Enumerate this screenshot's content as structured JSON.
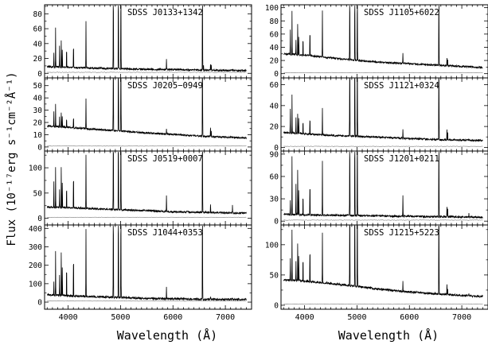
{
  "figure": {
    "ylabel": "Flux (10⁻¹⁷erg s⁻¹cm⁻²Å⁻¹)",
    "xlabel": "Wavelength (Å)"
  },
  "chart_data": [
    {
      "type": "line",
      "title": "SDSS J0133+1342",
      "column": "left",
      "row": 0,
      "ylim": [
        -4,
        90
      ],
      "yticks": [
        0,
        20,
        40,
        60,
        80
      ],
      "xlim": [
        3550,
        7500
      ],
      "xticks": [
        4000,
        5000,
        6000,
        7000
      ],
      "xticklabels": [],
      "continuum": {
        "x": [
          3600,
          4000,
          4500,
          5000,
          5500,
          6000,
          6500,
          7000,
          7500
        ],
        "y": [
          9.0,
          8.0,
          7.0,
          6.2,
          5.5,
          5.0,
          4.5,
          4.0,
          3.6
        ]
      },
      "lines": [
        {
          "x": 3727,
          "y": 30
        },
        {
          "x": 3760,
          "y": 62
        },
        {
          "x": 3835,
          "y": 40
        },
        {
          "x": 3869,
          "y": 48
        },
        {
          "x": 3889,
          "y": 35
        },
        {
          "x": 3970,
          "y": 38
        },
        {
          "x": 4102,
          "y": 46
        },
        {
          "x": 4340,
          "y": 70
        },
        {
          "x": 4861,
          "y": 200
        },
        {
          "x": 4959,
          "y": 200
        },
        {
          "x": 5007,
          "y": 200
        },
        {
          "x": 5876,
          "y": 20
        },
        {
          "x": 6563,
          "y": 200
        },
        {
          "x": 6584,
          "y": 10
        },
        {
          "x": 6717,
          "y": 14
        },
        {
          "x": 6731,
          "y": 11
        },
        {
          "x": 7136,
          "y": 6
        }
      ]
    },
    {
      "type": "line",
      "title": "SDSS J0205−0949",
      "column": "left",
      "row": 1,
      "ylim": [
        -2,
        55
      ],
      "yticks": [
        0,
        10,
        20,
        30,
        40,
        50
      ],
      "xlim": [
        3550,
        7500
      ],
      "xticks": [
        4000,
        5000,
        6000,
        7000
      ],
      "xticklabels": [],
      "continuum": {
        "x": [
          3600,
          4000,
          4500,
          5000,
          5500,
          6000,
          6500,
          7000,
          7500
        ],
        "y": [
          17,
          16,
          14.5,
          13,
          11.5,
          10.2,
          9.0,
          8.0,
          7.2
        ]
      },
      "lines": [
        {
          "x": 3727,
          "y": 30
        },
        {
          "x": 3760,
          "y": 35
        },
        {
          "x": 3835,
          "y": 26
        },
        {
          "x": 3869,
          "y": 30
        },
        {
          "x": 3889,
          "y": 26
        },
        {
          "x": 3970,
          "y": 25
        },
        {
          "x": 4102,
          "y": 27
        },
        {
          "x": 4340,
          "y": 40
        },
        {
          "x": 4861,
          "y": 200
        },
        {
          "x": 4959,
          "y": 200
        },
        {
          "x": 5007,
          "y": 200
        },
        {
          "x": 5876,
          "y": 15
        },
        {
          "x": 6563,
          "y": 200
        },
        {
          "x": 6717,
          "y": 17
        },
        {
          "x": 6731,
          "y": 13
        }
      ]
    },
    {
      "type": "line",
      "title": "SDSS J0519+0007",
      "column": "left",
      "row": 2,
      "ylim": [
        -10,
        130
      ],
      "yticks": [
        0,
        50,
        100
      ],
      "xlim": [
        3550,
        7500
      ],
      "xticks": [
        4000,
        5000,
        6000,
        7000
      ],
      "xticklabels": [],
      "continuum": {
        "x": [
          3600,
          4000,
          4500,
          5000,
          5500,
          6000,
          6500,
          7000,
          7500
        ],
        "y": [
          22,
          21,
          19,
          17,
          15,
          13,
          12,
          11,
          10
        ]
      },
      "lines": [
        {
          "x": 3727,
          "y": 80
        },
        {
          "x": 3760,
          "y": 100
        },
        {
          "x": 3835,
          "y": 60
        },
        {
          "x": 3869,
          "y": 110
        },
        {
          "x": 3889,
          "y": 75
        },
        {
          "x": 3970,
          "y": 70
        },
        {
          "x": 4102,
          "y": 100
        },
        {
          "x": 4340,
          "y": 125
        },
        {
          "x": 4861,
          "y": 300
        },
        {
          "x": 4959,
          "y": 300
        },
        {
          "x": 5007,
          "y": 300
        },
        {
          "x": 5876,
          "y": 45
        },
        {
          "x": 6563,
          "y": 300
        },
        {
          "x": 6717,
          "y": 30
        },
        {
          "x": 7136,
          "y": 25
        }
      ]
    },
    {
      "type": "line",
      "title": "SDSS J1044+0353",
      "column": "left",
      "row": 3,
      "ylim": [
        -30,
        410
      ],
      "yticks": [
        0,
        100,
        200,
        300,
        400
      ],
      "xlim": [
        3550,
        7500
      ],
      "xticks": [
        4000,
        5000,
        6000,
        7000
      ],
      "xticklabels": [
        "4000",
        "5000",
        "6000",
        "7000"
      ],
      "continuum": {
        "x": [
          3600,
          4000,
          4500,
          5000,
          5500,
          6000,
          6500,
          7000,
          7500
        ],
        "y": [
          40,
          35,
          30,
          25,
          20,
          18,
          16,
          15,
          14
        ]
      },
      "lines": [
        {
          "x": 3727,
          "y": 120
        },
        {
          "x": 3760,
          "y": 280
        },
        {
          "x": 3835,
          "y": 160
        },
        {
          "x": 3869,
          "y": 300
        },
        {
          "x": 3889,
          "y": 200
        },
        {
          "x": 3970,
          "y": 220
        },
        {
          "x": 4102,
          "y": 290
        },
        {
          "x": 4340,
          "y": 400
        },
        {
          "x": 4861,
          "y": 900
        },
        {
          "x": 4959,
          "y": 900
        },
        {
          "x": 5007,
          "y": 900
        },
        {
          "x": 5876,
          "y": 80
        },
        {
          "x": 6563,
          "y": 900
        },
        {
          "x": 6717,
          "y": 30
        },
        {
          "x": 7136,
          "y": 25
        }
      ]
    },
    {
      "type": "line",
      "title": "SDSS J1105+6022",
      "column": "right",
      "row": 0,
      "ylim": [
        -4,
        102
      ],
      "yticks": [
        0,
        20,
        40,
        60,
        80,
        100
      ],
      "xlim": [
        3550,
        7500
      ],
      "xticks": [
        4000,
        5000,
        6000,
        7000
      ],
      "xticklabels": [],
      "continuum": {
        "x": [
          3600,
          4000,
          4500,
          5000,
          5500,
          6000,
          6500,
          7000,
          7500
        ],
        "y": [
          30,
          28,
          24,
          20,
          17,
          15,
          13,
          11,
          9
        ]
      },
      "lines": [
        {
          "x": 3727,
          "y": 70
        },
        {
          "x": 3760,
          "y": 95
        },
        {
          "x": 3835,
          "y": 55
        },
        {
          "x": 3869,
          "y": 80
        },
        {
          "x": 3889,
          "y": 60
        },
        {
          "x": 3970,
          "y": 60
        },
        {
          "x": 4102,
          "y": 75
        },
        {
          "x": 4340,
          "y": 95
        },
        {
          "x": 4861,
          "y": 200
        },
        {
          "x": 4959,
          "y": 200
        },
        {
          "x": 5007,
          "y": 200
        },
        {
          "x": 5876,
          "y": 30
        },
        {
          "x": 6563,
          "y": 200
        },
        {
          "x": 6717,
          "y": 25
        },
        {
          "x": 6731,
          "y": 22
        }
      ]
    },
    {
      "type": "line",
      "title": "SDSS J1121+0324",
      "column": "right",
      "row": 1,
      "ylim": [
        -2,
        65
      ],
      "yticks": [
        0,
        20,
        40,
        60
      ],
      "xlim": [
        3550,
        7500
      ],
      "xticks": [
        4000,
        5000,
        6000,
        7000
      ],
      "xticklabels": [],
      "continuum": {
        "x": [
          3600,
          4000,
          4500,
          5000,
          5500,
          6000,
          6500,
          7000,
          7500
        ],
        "y": [
          14,
          13,
          11.5,
          10.5,
          9.5,
          8.5,
          7.5,
          7.0,
          6.5
        ]
      },
      "lines": [
        {
          "x": 3727,
          "y": 40
        },
        {
          "x": 3760,
          "y": 50
        },
        {
          "x": 3835,
          "y": 30
        },
        {
          "x": 3869,
          "y": 35
        },
        {
          "x": 3889,
          "y": 30
        },
        {
          "x": 3970,
          "y": 28
        },
        {
          "x": 4102,
          "y": 32
        },
        {
          "x": 4340,
          "y": 38
        },
        {
          "x": 4861,
          "y": 200
        },
        {
          "x": 4959,
          "y": 200
        },
        {
          "x": 5007,
          "y": 200
        },
        {
          "x": 5876,
          "y": 18
        },
        {
          "x": 6563,
          "y": 200
        },
        {
          "x": 6717,
          "y": 18
        },
        {
          "x": 6731,
          "y": 15
        }
      ]
    },
    {
      "type": "line",
      "title": "SDSS J1201+0211",
      "column": "right",
      "row": 2,
      "ylim": [
        -3,
        92
      ],
      "yticks": [
        0,
        30,
        60,
        90
      ],
      "xlim": [
        3550,
        7500
      ],
      "xticks": [
        4000,
        5000,
        6000,
        7000
      ],
      "xticklabels": [],
      "continuum": {
        "x": [
          3600,
          4000,
          4500,
          5000,
          5500,
          6000,
          6500,
          7000,
          7500
        ],
        "y": [
          9,
          8.5,
          8,
          7.5,
          7,
          6.5,
          6,
          5.5,
          5
        ]
      },
      "lines": [
        {
          "x": 3727,
          "y": 30
        },
        {
          "x": 3760,
          "y": 88
        },
        {
          "x": 3835,
          "y": 55
        },
        {
          "x": 3869,
          "y": 75
        },
        {
          "x": 3889,
          "y": 45
        },
        {
          "x": 3970,
          "y": 40
        },
        {
          "x": 4102,
          "y": 60
        },
        {
          "x": 4340,
          "y": 80
        },
        {
          "x": 4861,
          "y": 200
        },
        {
          "x": 4959,
          "y": 200
        },
        {
          "x": 5007,
          "y": 200
        },
        {
          "x": 5876,
          "y": 35
        },
        {
          "x": 6563,
          "y": 200
        },
        {
          "x": 6717,
          "y": 20
        },
        {
          "x": 6731,
          "y": 18
        },
        {
          "x": 7136,
          "y": 12
        }
      ]
    },
    {
      "type": "line",
      "title": "SDSS J1215+5223",
      "column": "right",
      "row": 3,
      "ylim": [
        -4,
        130
      ],
      "yticks": [
        0,
        50,
        100
      ],
      "xlim": [
        3550,
        7500
      ],
      "xticks": [
        4000,
        5000,
        6000,
        7000
      ],
      "xticklabels": [
        "4000",
        "5000",
        "6000",
        "7000"
      ],
      "continuum": {
        "x": [
          3600,
          4000,
          4500,
          5000,
          5500,
          6000,
          6500,
          7000,
          7500
        ],
        "y": [
          42,
          40,
          36,
          31,
          26,
          22,
          19,
          16,
          14
        ]
      },
      "lines": [
        {
          "x": 3727,
          "y": 80
        },
        {
          "x": 3760,
          "y": 125
        },
        {
          "x": 3835,
          "y": 75
        },
        {
          "x": 3869,
          "y": 110
        },
        {
          "x": 3889,
          "y": 85
        },
        {
          "x": 3970,
          "y": 85
        },
        {
          "x": 4102,
          "y": 105
        },
        {
          "x": 4340,
          "y": 120
        },
        {
          "x": 4861,
          "y": 300
        },
        {
          "x": 4959,
          "y": 300
        },
        {
          "x": 5007,
          "y": 300
        },
        {
          "x": 5876,
          "y": 40
        },
        {
          "x": 6563,
          "y": 300
        },
        {
          "x": 6717,
          "y": 35
        },
        {
          "x": 6731,
          "y": 28
        },
        {
          "x": 7136,
          "y": 20
        }
      ]
    }
  ]
}
